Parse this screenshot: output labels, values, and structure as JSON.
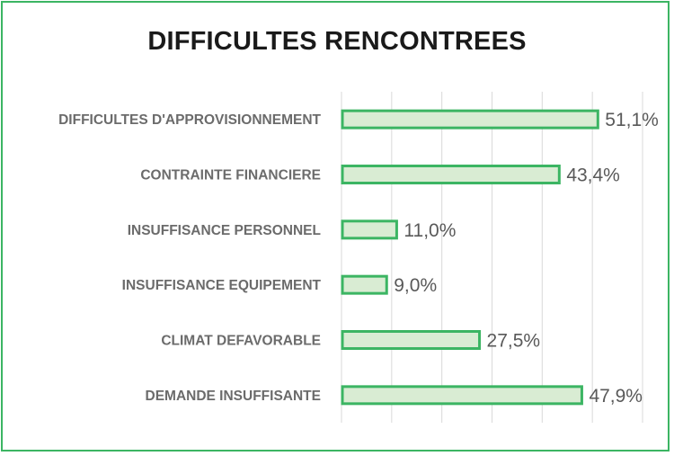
{
  "chart_data": {
    "type": "bar",
    "orientation": "horizontal",
    "title": "DIFFICULTES RENCONTREES",
    "categories": [
      "DIFFICULTES D'APPROVISIONNEMENT",
      "CONTRAINTE FINANCIERE",
      "INSUFFISANCE PERSONNEL",
      "INSUFFISANCE EQUIPEMENT",
      "CLIMAT DEFAVORABLE",
      "DEMANDE INSUFFISANTE"
    ],
    "values": [
      51.1,
      43.4,
      11.0,
      9.0,
      27.5,
      47.9
    ],
    "value_labels": [
      "51,1%",
      "43,4%",
      "11,0%",
      "9,0%",
      "27,5%",
      "47,9%"
    ],
    "xlim": [
      0,
      60
    ],
    "grid": true,
    "legend": "none",
    "colors": {
      "bar_fill": "#d9ecd3",
      "bar_stroke": "#3cb563",
      "border": "#3cb563",
      "grid": "#d9d9d9"
    }
  }
}
